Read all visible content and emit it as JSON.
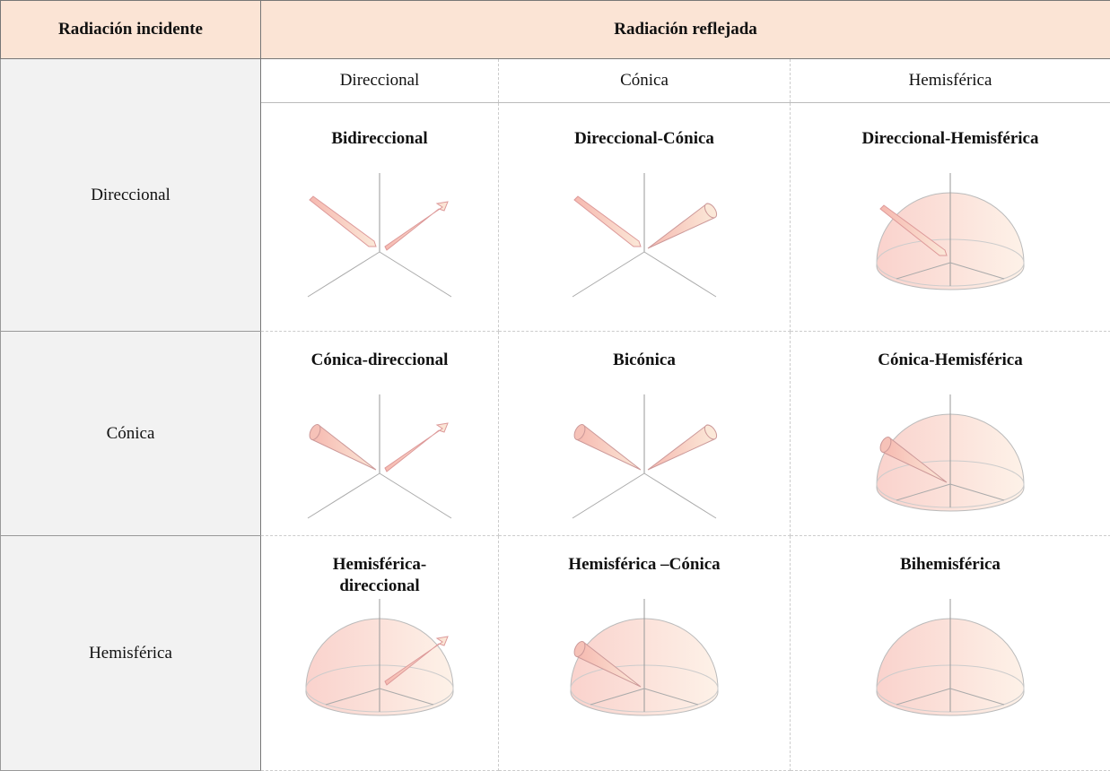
{
  "table": {
    "header": [
      "Radiación incidente",
      "Radiación reflejada"
    ],
    "columns": [
      "Direccional",
      "Cónica",
      "Hemisférica"
    ],
    "rows": [
      {
        "label": "Direccional",
        "cells": [
          "Bidireccional",
          "Direccional-Cónica",
          "Direccional-Hemisférica"
        ]
      },
      {
        "label": "Cónica",
        "cells": [
          "Cónica-direccional",
          "Bicónica",
          "Cónica-Hemisférica"
        ]
      },
      {
        "label": "Hemisférica",
        "cells": [
          "Hemisférica-\ndireccional",
          "Hemisférica –Cónica",
          "Bihemisférica"
        ]
      }
    ]
  }
}
